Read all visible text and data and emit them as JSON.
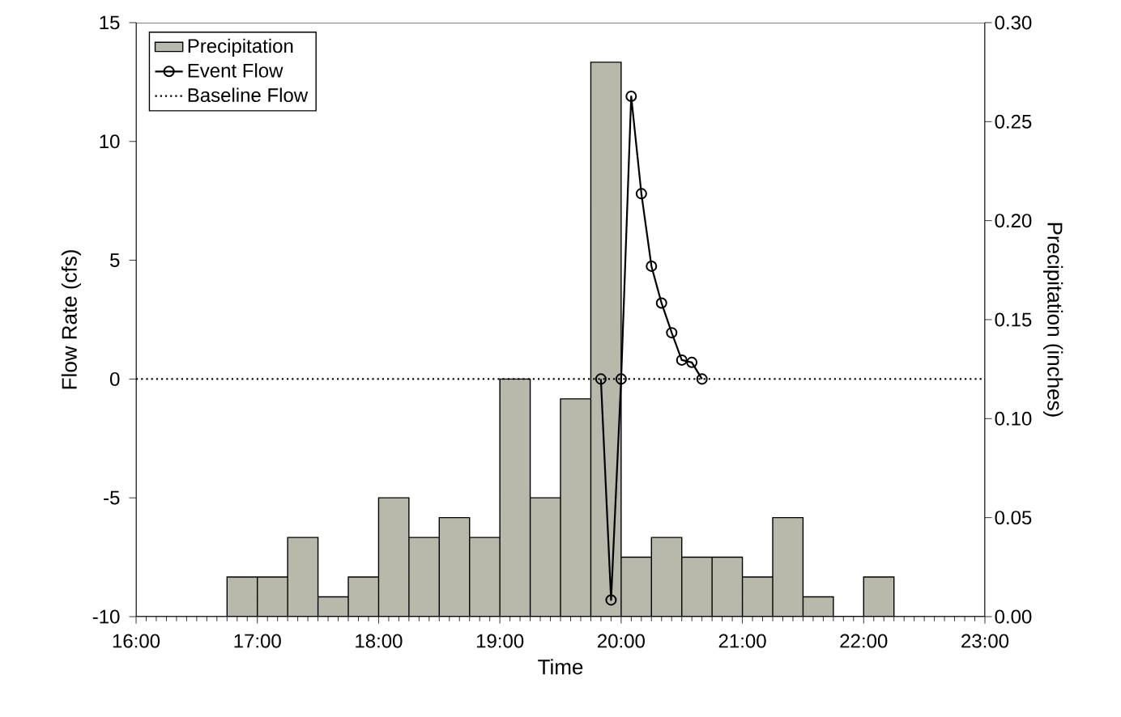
{
  "chart_data": {
    "type": "bar",
    "xlabel": "Time",
    "ylabel": "Flow Rate (cfs)",
    "y2label": "Precipitation (inches)",
    "xlim": [
      16,
      23
    ],
    "xticks": [
      {
        "value": 16,
        "label": "16:00"
      },
      {
        "value": 17,
        "label": "17:00"
      },
      {
        "value": 18,
        "label": "18:00"
      },
      {
        "value": 19,
        "label": "19:00"
      },
      {
        "value": 20,
        "label": "20:00"
      },
      {
        "value": 21,
        "label": "21:00"
      },
      {
        "value": 22,
        "label": "22:00"
      },
      {
        "value": 23,
        "label": "23:00"
      }
    ],
    "ylim": [
      -10,
      15
    ],
    "yticks": [
      -10,
      -5,
      0,
      5,
      10,
      15
    ],
    "y2lim": [
      0,
      0.3
    ],
    "y2ticks": [
      {
        "value": 0,
        "label": "0.00"
      },
      {
        "value": 0.05,
        "label": "0.05"
      },
      {
        "value": 0.1,
        "label": "0.10"
      },
      {
        "value": 0.15,
        "label": "0.15"
      },
      {
        "value": 0.2,
        "label": "0.20"
      },
      {
        "value": 0.25,
        "label": "0.25"
      },
      {
        "value": 0.3,
        "label": "0.30"
      }
    ],
    "legend": "top left",
    "grid": false,
    "series": [
      {
        "name": "Precipitation",
        "axis": "y2",
        "color": "#b9b9ab",
        "x": [
          16.875,
          17.125,
          17.375,
          17.625,
          17.875,
          18.125,
          18.375,
          18.625,
          18.875,
          19.125,
          19.375,
          19.625,
          19.875,
          20.125,
          20.375,
          20.625,
          20.875,
          21.125,
          21.375,
          21.625,
          21.875,
          22.125
        ],
        "values": [
          0.02,
          0.02,
          0.04,
          0.01,
          0.02,
          0.06,
          0.04,
          0.05,
          0.04,
          0.12,
          0.06,
          0.11,
          0.28,
          0.03,
          0.04,
          0.03,
          0.03,
          0.02,
          0.05,
          0.01,
          0,
          0.02
        ]
      },
      {
        "name": "Event Flow",
        "type": "line",
        "color": "#000000",
        "marker": "circle",
        "line_style": "solid",
        "x": [
          19.833,
          19.917,
          20.0,
          20.083,
          20.167,
          20.25,
          20.333,
          20.417,
          20.5,
          20.583,
          20.667
        ],
        "values": [
          0,
          -9.3,
          0,
          11.9,
          7.8,
          4.75,
          3.2,
          1.95,
          0.8,
          0.7,
          0
        ]
      },
      {
        "name": "Baseline Flow",
        "type": "line",
        "color": "#000000",
        "marker": "none",
        "line_style": "dotted",
        "x": [
          16,
          23
        ],
        "values": [
          0,
          0
        ]
      }
    ]
  }
}
